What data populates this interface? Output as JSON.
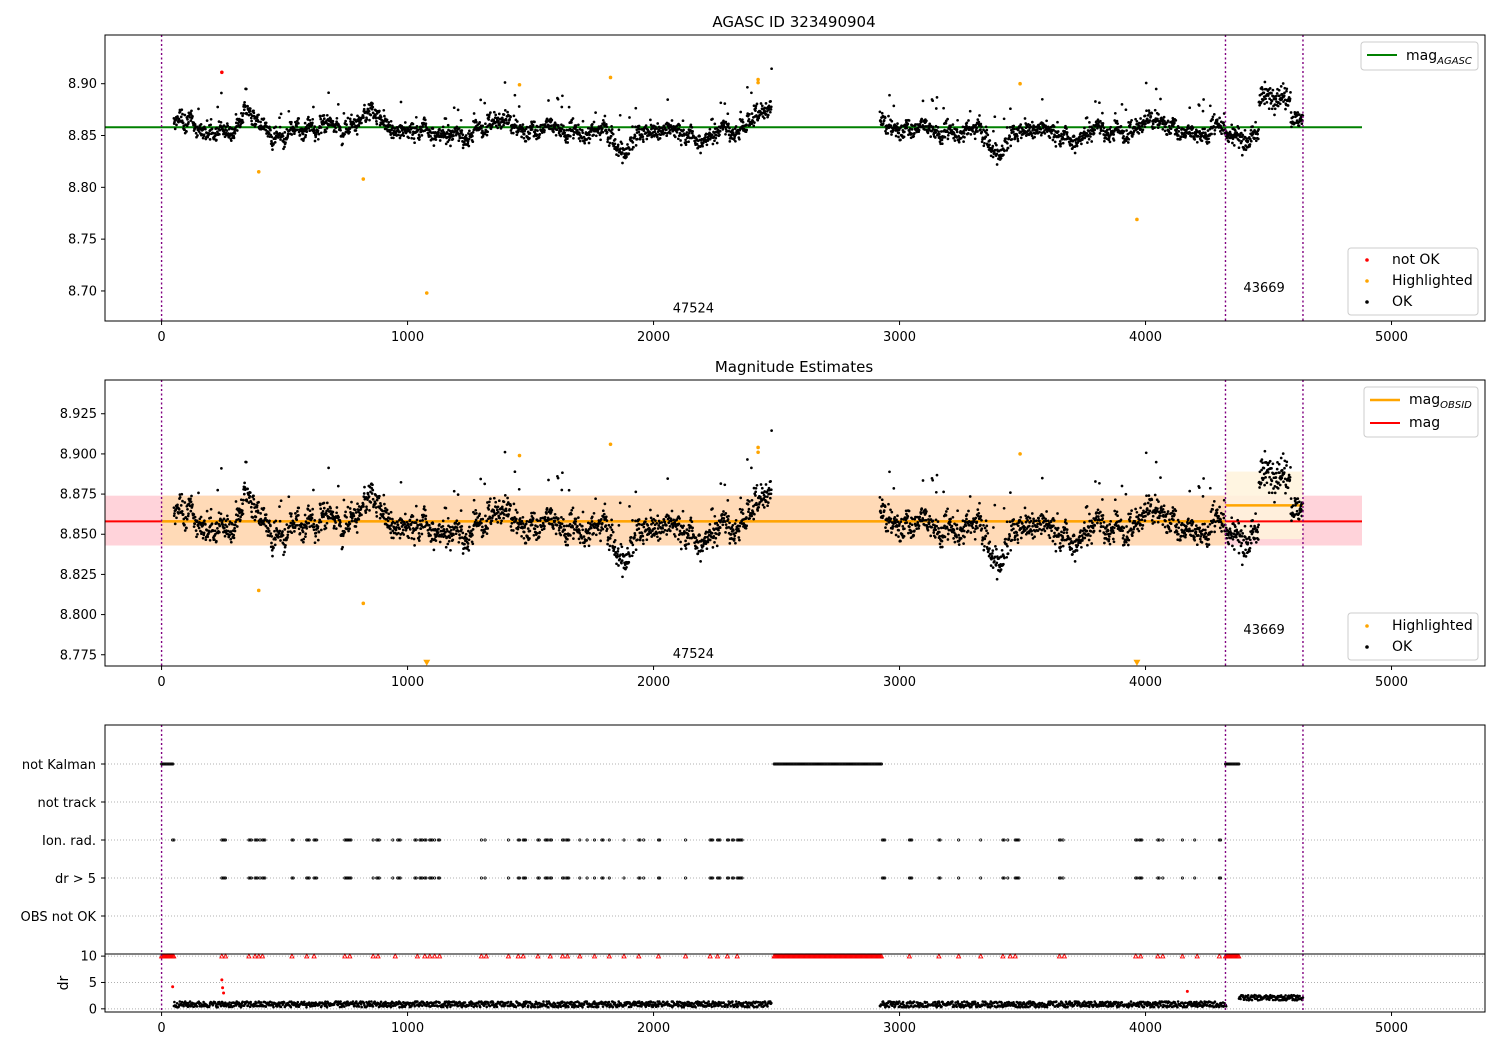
{
  "chart_data": [
    {
      "type": "scatter",
      "title": "AGASC ID 323490904",
      "xlabel": "",
      "ylabel": "",
      "xlim": [
        -230,
        5380
      ],
      "ylim": [
        8.671,
        8.947
      ],
      "xticks": [
        0,
        1000,
        2000,
        3000,
        4000,
        5000
      ],
      "xtick_labels": [
        "0",
        "1000",
        "2000",
        "3000",
        "4000",
        "5000"
      ],
      "yticks": [
        8.7,
        8.75,
        8.8,
        8.85,
        8.9
      ],
      "ytick_labels": [
        "8.70",
        "8.75",
        "8.80",
        "8.85",
        "8.90"
      ],
      "series": [
        {
          "name": "not OK",
          "color": "#ff0000",
          "points": [
            [
              245,
              8.911
            ]
          ]
        },
        {
          "name": "Highlighted",
          "color": "#ffa500",
          "points": [
            [
              395,
              8.815
            ],
            [
              820,
              8.808
            ],
            [
              1078,
              8.698
            ],
            [
              1455,
              8.899
            ],
            [
              1825,
              8.906
            ],
            [
              2425,
              8.904
            ],
            [
              2425,
              8.901
            ],
            [
              3490,
              8.9
            ],
            [
              3965,
              8.769
            ]
          ]
        },
        {
          "name": "OK",
          "color": "#000000",
          "description": "dense black scatter of ~3000 points, mean ~8.858 with scatter 8.82-8.92; gap between x=2480 and x=2920"
        }
      ],
      "hlines": [
        {
          "name": "mag_AGASC",
          "y": 8.858,
          "color": "#008000",
          "xrange": [
            -230,
            4880
          ]
        }
      ],
      "vlines": [
        {
          "x": 0,
          "color": "#800080"
        },
        {
          "x": 4325,
          "color": "#800080"
        },
        {
          "x": 4640,
          "color": "#800080"
        }
      ],
      "annotations": [
        {
          "text": "47524",
          "x": 2162,
          "y": 8.679
        },
        {
          "text": "43669",
          "x": 4482,
          "y": 8.699
        }
      ],
      "legend_upper": {
        "location": "top-right",
        "entries": [
          {
            "label": "mag",
            "sub": "AGASC"
          }
        ]
      },
      "legend_lower": {
        "location": "bottom-right",
        "entries": [
          "not OK",
          "Highlighted",
          "OK"
        ]
      }
    },
    {
      "type": "scatter",
      "title": "Magnitude Estimates",
      "xlabel": "",
      "ylabel": "",
      "xlim": [
        -230,
        5380
      ],
      "ylim": [
        8.768,
        8.946
      ],
      "xticks": [
        0,
        1000,
        2000,
        3000,
        4000,
        5000
      ],
      "xtick_labels": [
        "0",
        "1000",
        "2000",
        "3000",
        "4000",
        "5000"
      ],
      "yticks": [
        8.775,
        8.8,
        8.825,
        8.85,
        8.875,
        8.9,
        8.925
      ],
      "ytick_labels": [
        "8.775",
        "8.800",
        "8.825",
        "8.850",
        "8.875",
        "8.900",
        "8.925"
      ],
      "series": [
        {
          "name": "Highlighted",
          "color": "#ffa500",
          "points": [
            [
              395,
              8.815
            ],
            [
              820,
              8.807
            ],
            [
              1455,
              8.899
            ],
            [
              1825,
              8.906
            ],
            [
              2425,
              8.904
            ],
            [
              2425,
              8.901
            ],
            [
              3490,
              8.9
            ]
          ]
        },
        {
          "name": "Highlighted (off-scale)",
          "color": "#ffa500",
          "points": [
            [
              1078,
              8.77
            ],
            [
              3965,
              8.77
            ]
          ]
        },
        {
          "name": "OK",
          "color": "#000000",
          "description": "same points as top panel"
        }
      ],
      "bands": [
        {
          "name": "mag band",
          "y0": 8.843,
          "y1": 8.874,
          "x0": -230,
          "x1": 4880,
          "color": "#ffc0cb"
        },
        {
          "name": "obs 47524 band",
          "y0": 8.843,
          "y1": 8.874,
          "x0": 0,
          "x1": 4325,
          "color": "#ffdab0"
        },
        {
          "name": "obs 43669 band",
          "y0": 8.847,
          "y1": 8.889,
          "x0": 4325,
          "x1": 4640,
          "color": "#fff3dc"
        }
      ],
      "hlines": [
        {
          "name": "mag",
          "y": 8.858,
          "color": "#ff0000",
          "xrange": [
            -230,
            4880
          ]
        },
        {
          "name": "mag_OBSID 47524",
          "y": 8.858,
          "color": "#ffa500",
          "xrange": [
            0,
            4325
          ]
        },
        {
          "name": "mag_OBSID 43669",
          "y": 8.868,
          "color": "#ffa500",
          "xrange": [
            4325,
            4640
          ]
        }
      ],
      "vlines": [
        {
          "x": 0,
          "color": "#800080"
        },
        {
          "x": 4325,
          "color": "#800080"
        },
        {
          "x": 4640,
          "color": "#800080"
        }
      ],
      "annotations": [
        {
          "text": "47524",
          "x": 2162,
          "y": 8.773
        },
        {
          "text": "43669",
          "x": 4482,
          "y": 8.788
        }
      ],
      "legend_upper": {
        "location": "top-right",
        "entries": [
          {
            "label": "mag",
            "sub": "OBSID"
          },
          {
            "label": "mag",
            "sub": ""
          }
        ]
      },
      "legend_lower": {
        "location": "bottom-right",
        "entries": [
          "Highlighted",
          "OK"
        ]
      }
    },
    {
      "type": "scatter",
      "title": "",
      "xlabel": "",
      "ylabel": "",
      "xlim": [
        -230,
        5380
      ],
      "categories": [
        "not Kalman",
        "not track",
        "Ion. rad.",
        "dr > 5",
        "OBS not OK"
      ],
      "flag_ranges": {
        "not Kalman": [
          [
            0,
            50
          ],
          [
            2490,
            2930
          ],
          [
            4325,
            4380
          ]
        ],
        "not track": [],
        "Ion. rad.": "sparse clusters between x=45 and x=4330",
        "dr > 5": "sparse clusters between x=245 and x=4330",
        "OBS not OK": []
      },
      "vlines": [
        {
          "x": 0,
          "color": "#800080"
        },
        {
          "x": 4325,
          "color": "#800080"
        },
        {
          "x": 4640,
          "color": "#800080"
        }
      ]
    },
    {
      "type": "scatter",
      "title": "",
      "xlabel": "",
      "ylabel": "dr",
      "xlim": [
        -230,
        5380
      ],
      "ylim": [
        -0.6,
        10.4
      ],
      "yticks": [
        0,
        5,
        10
      ],
      "ytick_labels": [
        "0",
        "5",
        "10"
      ],
      "xticks": [
        0,
        1000,
        2000,
        3000,
        4000,
        5000
      ],
      "xtick_labels": [
        "0",
        "1000",
        "2000",
        "3000",
        "4000",
        "5000"
      ],
      "series": [
        {
          "name": "dr",
          "color": "#000000",
          "description": "dr values mostly 0.2-1.5, 1.5-2.5 for x>4380"
        },
        {
          "name": "dr clipped",
          "color": "#ff0000",
          "description": "red triangles at dr=10 (off-scale)"
        },
        {
          "name": "dr outliers",
          "color": "#ff0000",
          "points": [
            [
              45,
              4.2
            ],
            [
              245,
              5.5
            ],
            [
              248,
              4.0
            ],
            [
              252,
              3.0
            ],
            [
              4170,
              3.3
            ]
          ]
        }
      ],
      "vlines": [
        {
          "x": 0,
          "color": "#800080"
        },
        {
          "x": 4325,
          "color": "#800080"
        },
        {
          "x": 4640,
          "color": "#800080"
        }
      ]
    }
  ]
}
